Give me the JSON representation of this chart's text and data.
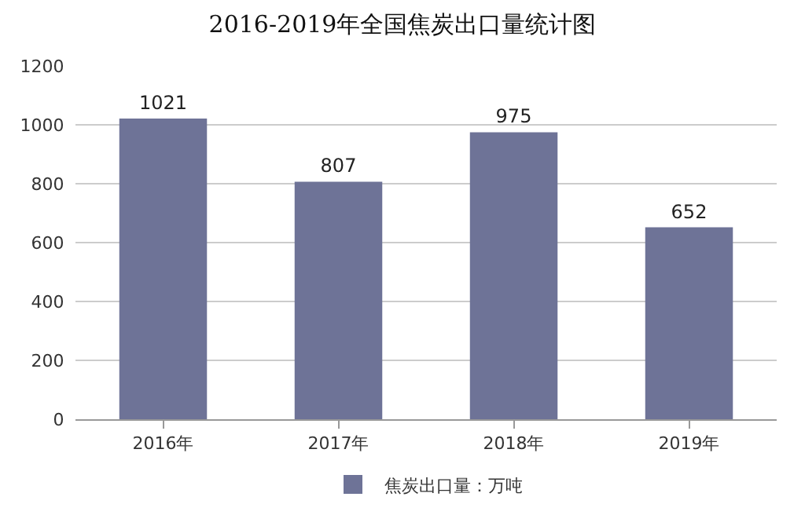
{
  "chart_data": {
    "type": "bar",
    "title": "2016-2019年全国焦炭出口量统计图",
    "categories": [
      "2016年",
      "2017年",
      "2018年",
      "2019年"
    ],
    "series": [
      {
        "name": "焦炭出口量：万吨",
        "color": "#6e7397",
        "values": [
          1021,
          807,
          975,
          652
        ]
      }
    ],
    "ylim": [
      0,
      1200
    ],
    "yticks": [
      0,
      200,
      400,
      600,
      800,
      1000,
      1200
    ],
    "grid": "y",
    "legend": "bottom",
    "data_labels": true
  }
}
